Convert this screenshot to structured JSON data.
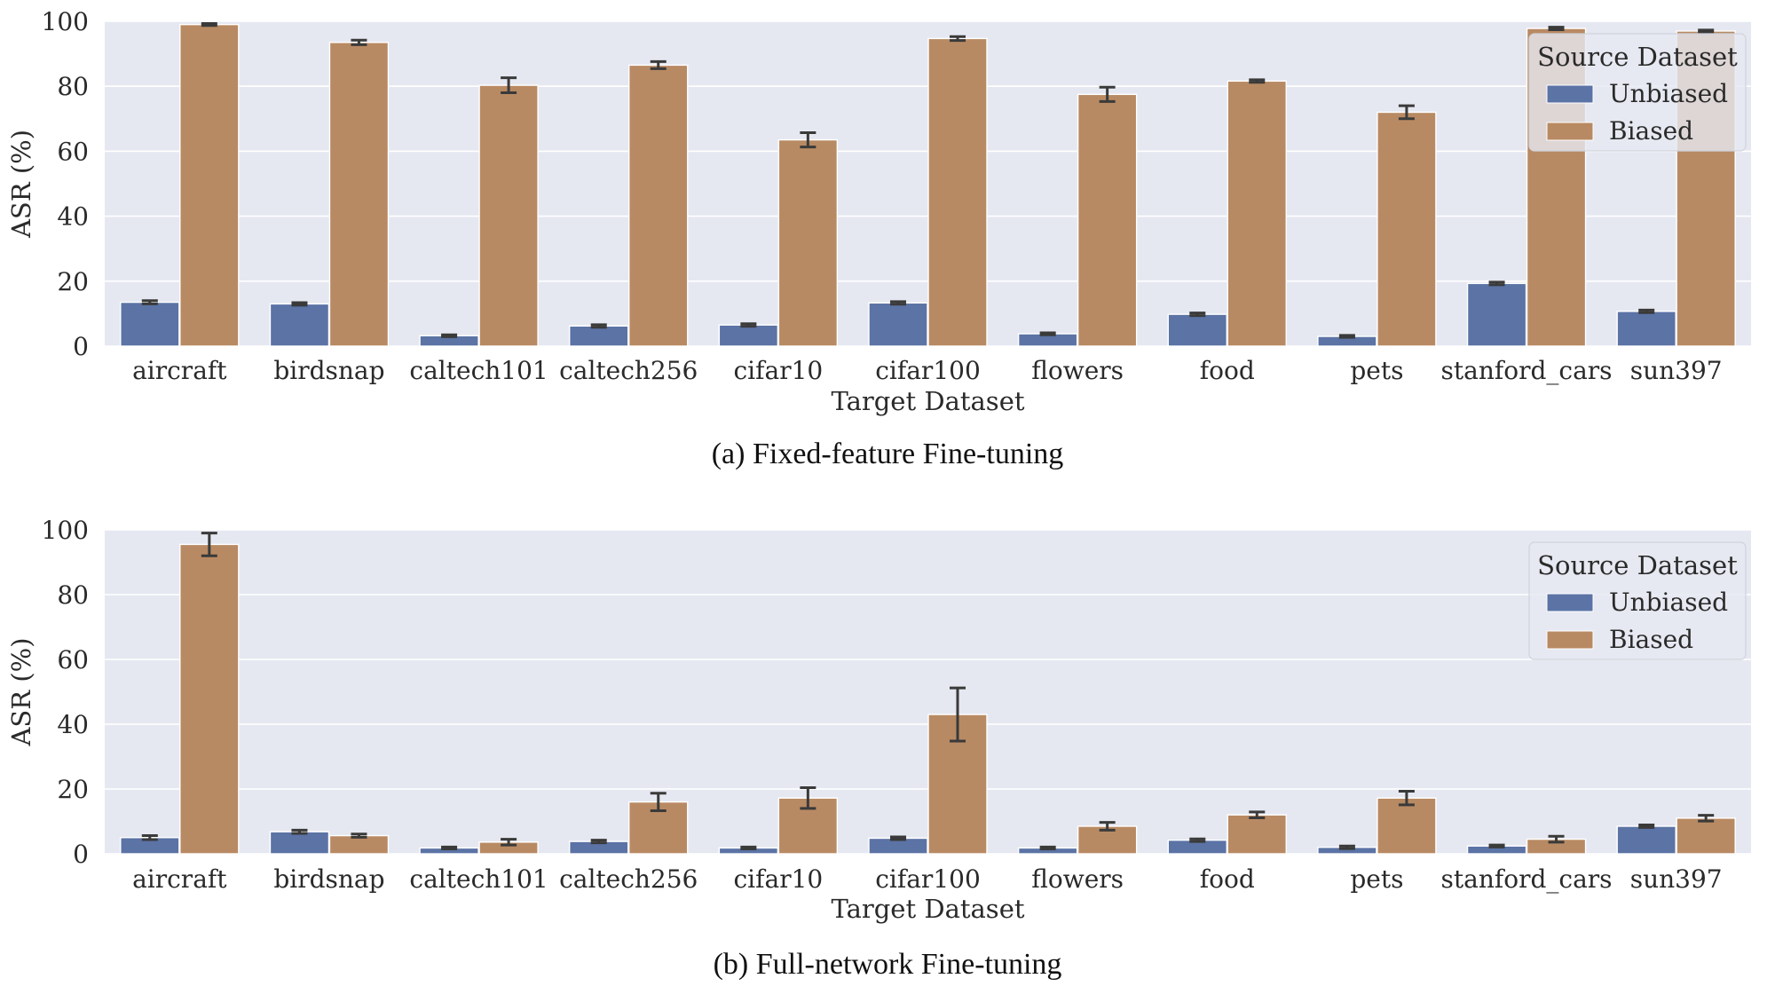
{
  "colors": {
    "unbiased": "#5b73a5",
    "biased": "#b88a63",
    "plot_bg": "#e6e8f1",
    "grid": "#ffffff",
    "errorbar": "#3a3a3a"
  },
  "chart_data": [
    {
      "type": "bar",
      "caption": "(a) Fixed-feature Fine-tuning",
      "xlabel": "Target Dataset",
      "ylabel": "ASR (%)",
      "ylim": [
        0,
        100
      ],
      "yticks": [
        "0",
        "20",
        "40",
        "60",
        "80",
        "100"
      ],
      "grid": true,
      "legend": {
        "title": "Source Dataset",
        "placement": "top-right"
      },
      "categories": [
        "aircraft",
        "birdsnap",
        "caltech101",
        "caltech256",
        "cifar10",
        "cifar100",
        "flowers",
        "food",
        "pets",
        "stanford_cars",
        "sun397"
      ],
      "series": [
        {
          "name": "Unbiased",
          "values": [
            13.5,
            13.0,
            3.2,
            6.2,
            6.5,
            13.3,
            3.8,
            9.8,
            3.0,
            19.3,
            10.7
          ],
          "err": [
            0.5,
            0.4,
            0.3,
            0.4,
            0.4,
            0.4,
            0.3,
            0.4,
            0.3,
            0.4,
            0.4
          ]
        },
        {
          "name": "Biased",
          "values": [
            99.0,
            93.5,
            80.3,
            86.5,
            63.5,
            94.7,
            77.5,
            81.6,
            72.0,
            97.8,
            97.0
          ],
          "err": [
            0.3,
            0.7,
            2.3,
            1.1,
            2.2,
            0.6,
            2.2,
            0.4,
            2.0,
            0.4,
            0.3
          ]
        }
      ]
    },
    {
      "type": "bar",
      "caption": "(b) Full-network Fine-tuning",
      "xlabel": "Target Dataset",
      "ylabel": "ASR (%)",
      "ylim": [
        0,
        100
      ],
      "yticks": [
        "0",
        "20",
        "40",
        "60",
        "80",
        "100"
      ],
      "grid": true,
      "legend": {
        "title": "Source Dataset",
        "placement": "top-right"
      },
      "categories": [
        "aircraft",
        "birdsnap",
        "caltech101",
        "caltech256",
        "cifar10",
        "cifar100",
        "flowers",
        "food",
        "pets",
        "stanford_cars",
        "sun397"
      ],
      "series": [
        {
          "name": "Unbiased",
          "values": [
            5.0,
            6.8,
            1.8,
            3.8,
            1.8,
            4.8,
            1.8,
            4.2,
            2.0,
            2.4,
            8.5
          ],
          "err": [
            0.6,
            0.5,
            0.3,
            0.4,
            0.3,
            0.4,
            0.3,
            0.4,
            0.4,
            0.3,
            0.4
          ]
        },
        {
          "name": "Biased",
          "values": [
            95.5,
            5.6,
            3.6,
            16.0,
            17.2,
            43.0,
            8.5,
            12.0,
            17.2,
            4.5,
            11.0
          ],
          "err": [
            3.5,
            0.5,
            0.9,
            2.7,
            3.2,
            8.2,
            1.2,
            0.9,
            2.1,
            0.9,
            0.9
          ]
        }
      ]
    }
  ]
}
